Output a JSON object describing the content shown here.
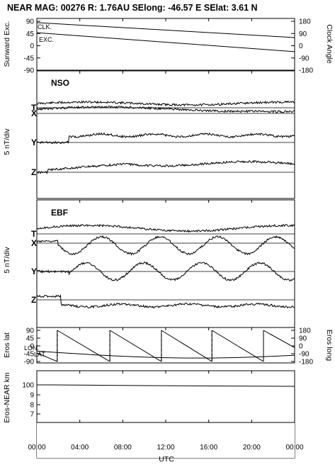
{
  "chart_data": {
    "type": "line",
    "title": "NEAR MAG: 00276  R: 1.76AU  SElong: -46.57 E  SElat:   3.61 N",
    "x_axis": {
      "label": "UTC",
      "ticks": [
        "00:00",
        "04:00",
        "08:00",
        "12:00",
        "16:00",
        "20:00",
        "00:00"
      ],
      "range_hours": [
        0,
        24
      ]
    },
    "panels": [
      {
        "name": "sunward-clock",
        "ylabel_left": "Sunward Exc.",
        "ylabel_right": "Clock Angle",
        "yticks_left": [
          "90",
          "45",
          "0",
          "-45",
          "-90"
        ],
        "yticks_right": [
          "180",
          "90",
          "0",
          "-90",
          "-180"
        ],
        "ylim_left": [
          -90,
          90
        ],
        "series_labels": [
          "CLK.",
          "EXC."
        ],
        "series": [
          {
            "name": "CLK.",
            "x": [
              0,
              24
            ],
            "y": [
              85,
              30
            ]
          },
          {
            "name": "EXC.",
            "x": [
              0,
              24
            ],
            "y": [
              48,
              -22
            ]
          }
        ]
      },
      {
        "name": "NSO",
        "label": "NSO",
        "ylabel": "5 nT/div",
        "traces": [
          "T",
          "X",
          "Y",
          "Z"
        ]
      },
      {
        "name": "EBF",
        "label": "EBF",
        "ylabel": "5 nT/div",
        "traces": [
          "T",
          "X",
          "Y",
          "Z"
        ]
      },
      {
        "name": "eros-lat-long",
        "ylabel_left": "Eros lat",
        "ylabel_right": "Eros long",
        "yticks_left": [
          "90",
          "45",
          "0",
          "-45",
          "-90"
        ],
        "yticks_right": [
          "180",
          "90",
          "0",
          "-90",
          "-180"
        ],
        "series_labels": [
          "LON.",
          "LAT."
        ],
        "longitude_wraps_hours": [
          1.9,
          6.8,
          11.6,
          16.3,
          21.1
        ]
      },
      {
        "name": "eros-near-distance",
        "ylabel": "Eros-NEAR km",
        "yticks": [
          "100",
          "9",
          "8",
          "7"
        ],
        "series": [
          {
            "name": "distance",
            "x": [
              0,
              1.5,
              10,
              24
            ],
            "y": [
              100,
              100,
              99.5,
              99
            ]
          }
        ]
      }
    ]
  }
}
